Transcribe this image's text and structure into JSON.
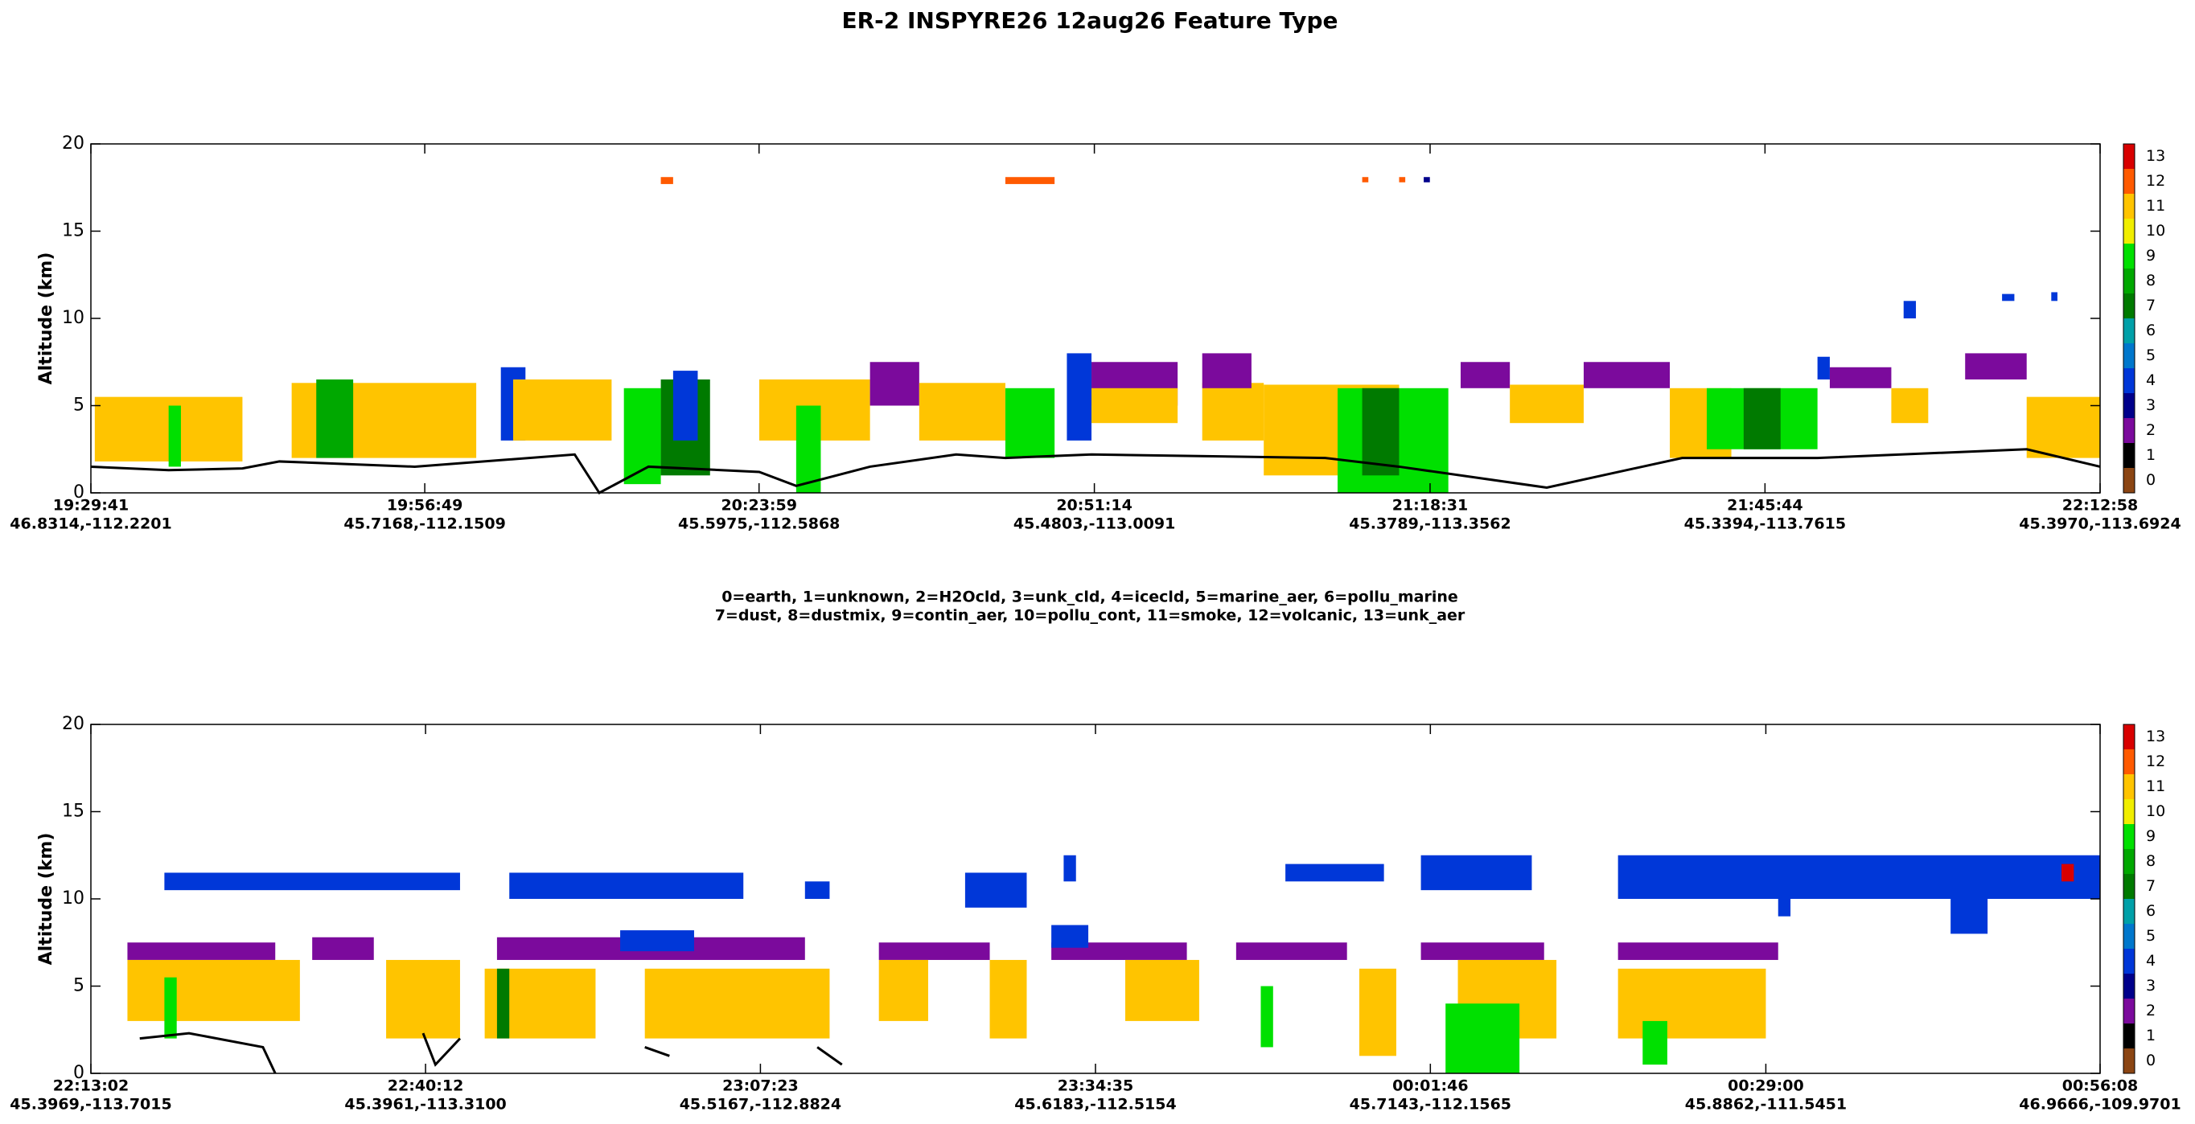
{
  "title": "ER-2  INSPYRE26  12aug26  Feature Type",
  "class_key": [
    "0=earth, 1=unknown, 2=H2Ocld, 3=unk_cld, 4=icecld, 5=marine_aer, 6=pollu_marine",
    "7=dust, 8=dustmix, 9=contin_aer, 10=pollu_cont, 11=smoke, 12=volcanic, 13=unk_aer"
  ],
  "chart_data": [
    {
      "type": "heatmap",
      "ylabel": "Altitude (km)",
      "ylim": [
        0,
        20
      ],
      "yticks": [
        0,
        5,
        10,
        15,
        20
      ],
      "xlim": [
        "19:29:41",
        "22:12:58"
      ],
      "xticks": [
        "19:29:41",
        "19:56:49",
        "20:23:59",
        "20:51:14",
        "21:18:31",
        "21:45:44",
        "22:12:58"
      ],
      "xtick_locations": [
        "46.8314,-112.2201",
        "45.7168,-112.1509",
        "45.5975,-112.5868",
        "45.4803,-113.0091",
        "45.3789,-113.3562",
        "45.3394,-113.7615",
        "45.3970,-113.6924"
      ],
      "colorbar": {
        "ticks": [
          0,
          1,
          2,
          3,
          4,
          5,
          6,
          7,
          8,
          9,
          10,
          11,
          12,
          13
        ],
        "colors": [
          "#8b4513",
          "#000000",
          "#7b0a9c",
          "#00008b",
          "#0037d8",
          "#0077cc",
          "#00a0a8",
          "#007a00",
          "#00a800",
          "#00e000",
          "#f0ee00",
          "#ffc400",
          "#ff5a00",
          "#d80000"
        ]
      },
      "features": [
        {
          "class": 11,
          "x": [
            "19:30:00",
            "19:42:00"
          ],
          "y": [
            1.8,
            5.5
          ]
        },
        {
          "class": 9,
          "x": [
            "19:36:00",
            "19:37:00"
          ],
          "y": [
            1.5,
            5
          ]
        },
        {
          "class": 11,
          "x": [
            "19:46:00",
            "20:01:00"
          ],
          "y": [
            2,
            6.3
          ]
        },
        {
          "class": 8,
          "x": [
            "19:48:00",
            "19:51:00"
          ],
          "y": [
            2,
            6.5
          ]
        },
        {
          "class": 4,
          "x": [
            "20:03:00",
            "20:05:00"
          ],
          "y": [
            3,
            7.2
          ]
        },
        {
          "class": 11,
          "x": [
            "20:04:00",
            "20:12:00"
          ],
          "y": [
            3,
            6.5
          ]
        },
        {
          "class": 9,
          "x": [
            "20:13:00",
            "20:16:00"
          ],
          "y": [
            0.5,
            6
          ]
        },
        {
          "class": 7,
          "x": [
            "20:16:00",
            "20:20:00"
          ],
          "y": [
            1,
            6.5
          ]
        },
        {
          "class": 4,
          "x": [
            "20:17:00",
            "20:19:00"
          ],
          "y": [
            3,
            7
          ]
        },
        {
          "class": 11,
          "x": [
            "20:24:00",
            "20:33:00"
          ],
          "y": [
            3,
            6.5
          ]
        },
        {
          "class": 9,
          "x": [
            "20:27:00",
            "20:29:00"
          ],
          "y": [
            0,
            5
          ]
        },
        {
          "class": 2,
          "x": [
            "20:33:00",
            "20:37:00"
          ],
          "y": [
            5,
            7.5
          ]
        },
        {
          "class": 11,
          "x": [
            "20:37:00",
            "20:44:00"
          ],
          "y": [
            3,
            6.3
          ]
        },
        {
          "class": 9,
          "x": [
            "20:44:00",
            "20:48:00"
          ],
          "y": [
            2,
            6
          ]
        },
        {
          "class": 4,
          "x": [
            "20:49:00",
            "20:51:00"
          ],
          "y": [
            3,
            8
          ]
        },
        {
          "class": 2,
          "x": [
            "20:51:00",
            "20:58:00"
          ],
          "y": [
            5,
            7.5
          ]
        },
        {
          "class": 11,
          "x": [
            "20:51:00",
            "20:58:00"
          ],
          "y": [
            4,
            6
          ]
        },
        {
          "class": 11,
          "x": [
            "21:00:00",
            "21:05:00"
          ],
          "y": [
            3,
            6.3
          ]
        },
        {
          "class": 2,
          "x": [
            "21:00:00",
            "21:04:00"
          ],
          "y": [
            6,
            8
          ]
        },
        {
          "class": 11,
          "x": [
            "21:05:00",
            "21:16:00"
          ],
          "y": [
            1,
            6.2
          ]
        },
        {
          "class": 9,
          "x": [
            "21:11:00",
            "21:20:00"
          ],
          "y": [
            0,
            6
          ]
        },
        {
          "class": 7,
          "x": [
            "21:13:00",
            "21:16:00"
          ],
          "y": [
            1,
            6
          ]
        },
        {
          "class": 2,
          "x": [
            "21:21:00",
            "21:25:00"
          ],
          "y": [
            6,
            7.5
          ]
        },
        {
          "class": 11,
          "x": [
            "21:25:00",
            "21:31:00"
          ],
          "y": [
            4,
            6.2
          ]
        },
        {
          "class": 2,
          "x": [
            "21:31:00",
            "21:38:00"
          ],
          "y": [
            6,
            7.5
          ]
        },
        {
          "class": 11,
          "x": [
            "21:38:00",
            "21:43:00"
          ],
          "y": [
            2,
            6
          ]
        },
        {
          "class": 9,
          "x": [
            "21:41:00",
            "21:50:00"
          ],
          "y": [
            2.5,
            6
          ]
        },
        {
          "class": 7,
          "x": [
            "21:44:00",
            "21:47:00"
          ],
          "y": [
            2.5,
            6
          ]
        },
        {
          "class": 4,
          "x": [
            "21:50:00",
            "21:51:00"
          ],
          "y": [
            6.5,
            7.8
          ]
        },
        {
          "class": 2,
          "x": [
            "21:51:00",
            "21:56:00"
          ],
          "y": [
            6,
            7.2
          ]
        },
        {
          "class": 11,
          "x": [
            "21:56:00",
            "21:59:00"
          ],
          "y": [
            4,
            6
          ]
        },
        {
          "class": 2,
          "x": [
            "22:02:00",
            "22:07:00"
          ],
          "y": [
            6.5,
            8
          ]
        },
        {
          "class": 11,
          "x": [
            "22:07:00",
            "22:12:58"
          ],
          "y": [
            2,
            5.5
          ]
        },
        {
          "class": 4,
          "x": [
            "21:57:00",
            "21:58:00"
          ],
          "y": [
            10,
            11
          ]
        },
        {
          "class": 4,
          "x": [
            "22:05:00",
            "22:06:00"
          ],
          "y": [
            11,
            11.4
          ]
        },
        {
          "class": 4,
          "x": [
            "22:09:00",
            "22:09:30"
          ],
          "y": [
            11,
            11.5
          ]
        },
        {
          "class": 12,
          "x": [
            "20:16:00",
            "20:17:00"
          ],
          "y": [
            17.7,
            18.1
          ]
        },
        {
          "class": 12,
          "x": [
            "20:44:00",
            "20:48:00"
          ],
          "y": [
            17.7,
            18.1
          ]
        },
        {
          "class": 12,
          "x": [
            "21:13:00",
            "21:13:30"
          ],
          "y": [
            17.8,
            18.1
          ]
        },
        {
          "class": 12,
          "x": [
            "21:16:00",
            "21:16:30"
          ],
          "y": [
            17.8,
            18.1
          ]
        },
        {
          "class": 3,
          "x": [
            "21:18:00",
            "21:18:30"
          ],
          "y": [
            17.8,
            18.1
          ]
        }
      ],
      "surface": {
        "x": [
          "19:29:41",
          "19:36:00",
          "19:42:00",
          "19:45:00",
          "19:56:00",
          "20:09:00",
          "20:11:00",
          "20:15:00",
          "20:24:00",
          "20:27:00",
          "20:33:00",
          "20:40:00",
          "20:44:00",
          "20:51:00",
          "21:10:00",
          "21:16:00",
          "21:28:00",
          "21:39:00",
          "21:50:00",
          "22:07:00",
          "22:12:58"
        ],
        "y": [
          1.5,
          1.3,
          1.4,
          1.8,
          1.5,
          2.2,
          0,
          1.5,
          1.2,
          0.4,
          1.5,
          2.2,
          2,
          2.2,
          2,
          1.5,
          0.3,
          2,
          2,
          2.5,
          1.5
        ]
      }
    },
    {
      "type": "heatmap",
      "ylabel": "Altitude (km)",
      "ylim": [
        0,
        20
      ],
      "yticks": [
        0,
        5,
        10,
        15,
        20
      ],
      "xlim": [
        "22:13:02",
        "00:56:08"
      ],
      "xticks": [
        "22:13:02",
        "22:40:12",
        "23:07:23",
        "23:34:35",
        "00:01:46",
        "00:29:00",
        "00:56:08"
      ],
      "xtick_locations": [
        "45.3969,-113.7015",
        "45.3961,-113.3100",
        "45.5167,-112.8824",
        "45.6183,-112.5154",
        "45.7143,-112.1565",
        "45.8862,-111.5451",
        "46.9666,-109.9701"
      ],
      "colorbar": {
        "ticks": [
          0,
          1,
          2,
          3,
          4,
          5,
          6,
          7,
          8,
          9,
          10,
          11,
          12,
          13
        ],
        "colors": [
          "#8b4513",
          "#000000",
          "#7b0a9c",
          "#00008b",
          "#0037d8",
          "#0077cc",
          "#00a0a8",
          "#007a00",
          "#00a800",
          "#00e000",
          "#f0ee00",
          "#ffc400",
          "#ff5a00",
          "#d80000"
        ]
      },
      "features": [
        {
          "class": 4,
          "x": [
            "22:19:00",
            "22:43:00"
          ],
          "y": [
            10.5,
            11.5
          ]
        },
        {
          "class": 4,
          "x": [
            "22:47:00",
            "23:06:00"
          ],
          "y": [
            10,
            11.5
          ]
        },
        {
          "class": 4,
          "x": [
            "23:11:00",
            "23:13:00"
          ],
          "y": [
            10,
            11
          ]
        },
        {
          "class": 4,
          "x": [
            "23:24:00",
            "23:29:00"
          ],
          "y": [
            9.5,
            11.5
          ]
        },
        {
          "class": 4,
          "x": [
            "23:32:00",
            "23:33:00"
          ],
          "y": [
            11,
            12.5
          ]
        },
        {
          "class": 4,
          "x": [
            "23:50:00",
            "23:58:00"
          ],
          "y": [
            11,
            12
          ]
        },
        {
          "class": 4,
          "x": [
            "00:01:00",
            "00:10:00"
          ],
          "y": [
            10.5,
            12.5
          ]
        },
        {
          "class": 4,
          "x": [
            "00:17:00",
            "00:56:08"
          ],
          "y": [
            10,
            12.5
          ]
        },
        {
          "class": 4,
          "x": [
            "00:30:00",
            "00:31:00"
          ],
          "y": [
            9,
            10
          ]
        },
        {
          "class": 4,
          "x": [
            "00:44:00",
            "00:47:00"
          ],
          "y": [
            8,
            10
          ]
        },
        {
          "class": 2,
          "x": [
            "22:16:00",
            "22:28:00"
          ],
          "y": [
            6.5,
            7.5
          ]
        },
        {
          "class": 2,
          "x": [
            "22:31:00",
            "22:36:00"
          ],
          "y": [
            6.5,
            7.8
          ]
        },
        {
          "class": 2,
          "x": [
            "22:46:00",
            "23:11:00"
          ],
          "y": [
            6.5,
            7.8
          ]
        },
        {
          "class": 4,
          "x": [
            "22:56:00",
            "23:02:00"
          ],
          "y": [
            7,
            8.2
          ]
        },
        {
          "class": 2,
          "x": [
            "23:17:00",
            "23:26:00"
          ],
          "y": [
            6.5,
            7.5
          ]
        },
        {
          "class": 2,
          "x": [
            "23:31:00",
            "23:42:00"
          ],
          "y": [
            6.5,
            7.5
          ]
        },
        {
          "class": 4,
          "x": [
            "23:31:00",
            "23:34:00"
          ],
          "y": [
            7.2,
            8.5
          ]
        },
        {
          "class": 2,
          "x": [
            "23:46:00",
            "23:55:00"
          ],
          "y": [
            6.5,
            7.5
          ]
        },
        {
          "class": 2,
          "x": [
            "00:01:00",
            "00:11:00"
          ],
          "y": [
            6.5,
            7.5
          ]
        },
        {
          "class": 2,
          "x": [
            "00:17:00",
            "00:30:00"
          ],
          "y": [
            6.5,
            7.5
          ]
        },
        {
          "class": 11,
          "x": [
            "22:16:00",
            "22:30:00"
          ],
          "y": [
            3,
            6.5
          ]
        },
        {
          "class": 11,
          "x": [
            "22:37:00",
            "22:43:00"
          ],
          "y": [
            2,
            6.5
          ]
        },
        {
          "class": 11,
          "x": [
            "22:45:00",
            "22:54:00"
          ],
          "y": [
            2,
            6
          ]
        },
        {
          "class": 7,
          "x": [
            "22:46:00",
            "22:47:00"
          ],
          "y": [
            2,
            6
          ]
        },
        {
          "class": 11,
          "x": [
            "22:58:00",
            "23:13:00"
          ],
          "y": [
            2,
            6
          ]
        },
        {
          "class": 11,
          "x": [
            "23:17:00",
            "23:21:00"
          ],
          "y": [
            3,
            6.5
          ]
        },
        {
          "class": 11,
          "x": [
            "23:26:00",
            "23:29:00"
          ],
          "y": [
            2,
            6.5
          ]
        },
        {
          "class": 11,
          "x": [
            "23:37:00",
            "23:43:00"
          ],
          "y": [
            3,
            6.5
          ]
        },
        {
          "class": 9,
          "x": [
            "23:48:00",
            "23:49:00"
          ],
          "y": [
            1.5,
            5
          ]
        },
        {
          "class": 11,
          "x": [
            "23:56:00",
            "23:59:00"
          ],
          "y": [
            1,
            6
          ]
        },
        {
          "class": 11,
          "x": [
            "00:04:00",
            "00:12:00"
          ],
          "y": [
            2,
            6.5
          ]
        },
        {
          "class": 9,
          "x": [
            "00:03:00",
            "00:09:00"
          ],
          "y": [
            0,
            4
          ]
        },
        {
          "class": 11,
          "x": [
            "00:17:00",
            "00:29:00"
          ],
          "y": [
            2,
            6
          ]
        },
        {
          "class": 9,
          "x": [
            "00:19:00",
            "00:21:00"
          ],
          "y": [
            0.5,
            3
          ]
        },
        {
          "class": 9,
          "x": [
            "22:19:00",
            "22:20:00"
          ],
          "y": [
            2,
            5.5
          ]
        },
        {
          "class": 13,
          "x": [
            "00:53:00",
            "00:54:00"
          ],
          "y": [
            11,
            12
          ]
        }
      ],
      "surface": {
        "x": [
          "22:17:00",
          "22:21:00",
          "22:27:00",
          "22:28:00",
          "22:36:00",
          "22:40:00",
          "22:41:00",
          "22:43:00",
          "22:56:00",
          "22:58:00",
          "23:00:00",
          "23:07:00",
          "23:12:00",
          "23:14:00",
          "23:25:00",
          "23:28:00",
          "23:41:00",
          "00:00:00"
        ],
        "y": [
          2,
          2.3,
          1.5,
          0,
          null,
          2.3,
          0.5,
          2,
          null,
          1.5,
          1,
          null,
          1.5,
          0.5,
          null,
          2,
          null,
          0
        ]
      }
    }
  ]
}
